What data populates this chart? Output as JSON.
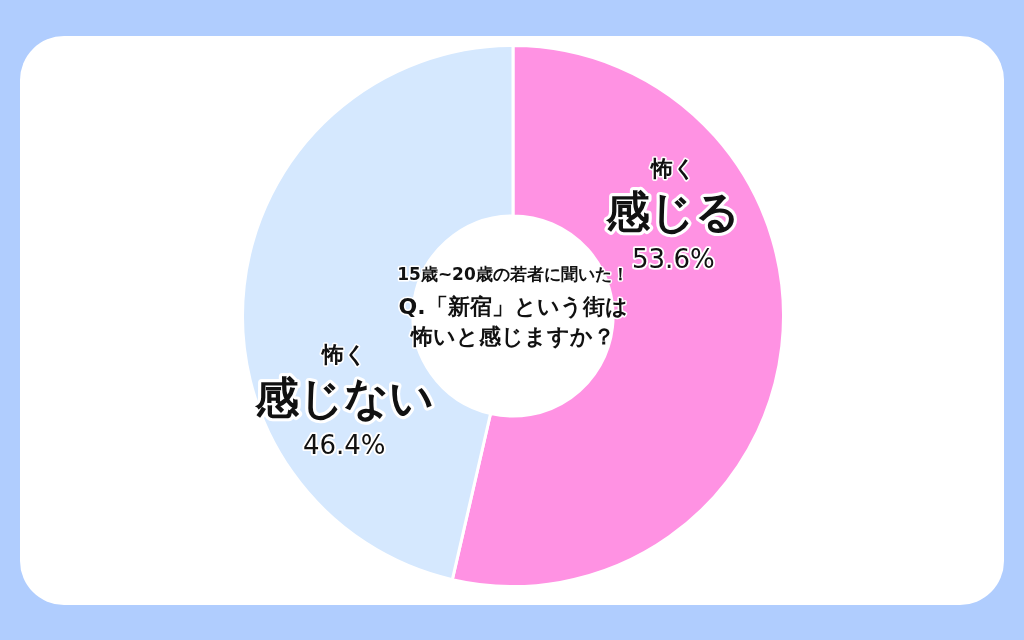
{
  "chart_data": {
    "type": "donut",
    "title": "Q.「新宿」という街は怖いと感じますか？",
    "subtitle": "15歳~20歳の若者に聞いた！",
    "categories": [
      "怖く感じる",
      "怖く感じない"
    ],
    "values": [
      53.6,
      46.4
    ],
    "colors": [
      "#ff92e3",
      "#d5e8fe"
    ],
    "value_labels": [
      "53.6%",
      "46.4%"
    ]
  }
}
